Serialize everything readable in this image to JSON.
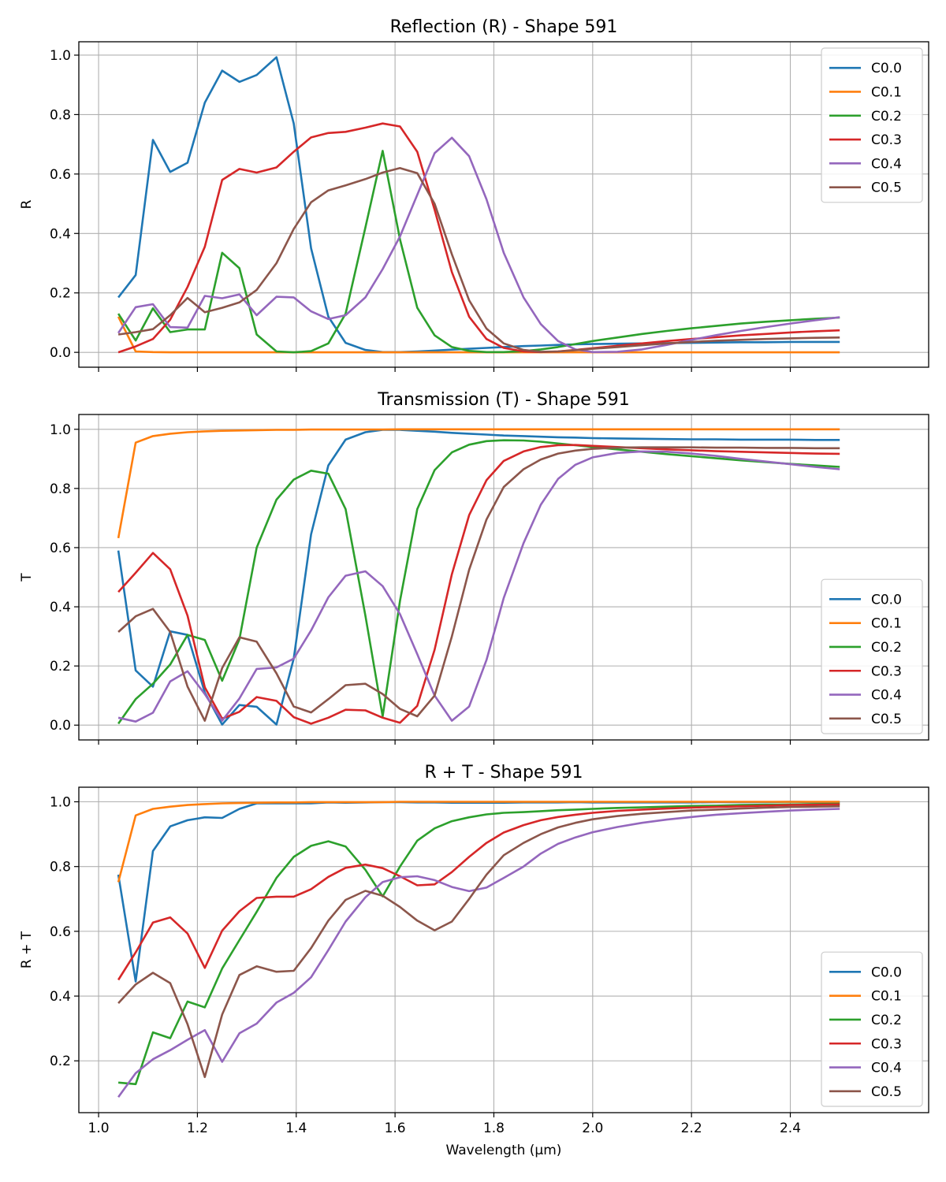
{
  "chart_data": [
    {
      "type": "line",
      "title": "Reflection (R) - Shape 591",
      "xlabel": "",
      "ylabel": "R",
      "xlim": [
        0.96,
        2.68
      ],
      "ylim": [
        -0.05,
        1.045
      ],
      "xticks": [
        1.0,
        1.2,
        1.4,
        1.6,
        1.8,
        2.0,
        2.2,
        2.4
      ],
      "xtick_labels": [],
      "yticks": [
        0.0,
        0.2,
        0.4,
        0.6,
        0.8,
        1.0
      ],
      "ytick_labels": [
        "0.0",
        "0.2",
        "0.4",
        "0.6",
        "0.8",
        "1.0"
      ],
      "grid": true,
      "legend": "top-right",
      "x": [
        1.04,
        1.075,
        1.11,
        1.145,
        1.18,
        1.215,
        1.25,
        1.285,
        1.32,
        1.36,
        1.395,
        1.43,
        1.465,
        1.5,
        1.54,
        1.575,
        1.61,
        1.645,
        1.68,
        1.715,
        1.75,
        1.785,
        1.82,
        1.86,
        1.895,
        1.93,
        1.965,
        2.0,
        2.05,
        2.1,
        2.15,
        2.2,
        2.25,
        2.3,
        2.35,
        2.4,
        2.45,
        2.5
      ],
      "series": [
        {
          "name": "C0.0",
          "color": "#1f77b4",
          "values": [
            0.185,
            0.26,
            0.715,
            0.607,
            0.638,
            0.84,
            0.948,
            0.91,
            0.933,
            0.993,
            0.77,
            0.35,
            0.12,
            0.032,
            0.008,
            0.001,
            0.001,
            0.003,
            0.006,
            0.009,
            0.012,
            0.015,
            0.018,
            0.021,
            0.023,
            0.025,
            0.027,
            0.028,
            0.029,
            0.03,
            0.031,
            0.032,
            0.033,
            0.034,
            0.034,
            0.035,
            0.035,
            0.035
          ]
        },
        {
          "name": "C0.1",
          "color": "#ff7f0e",
          "values": [
            0.12,
            0.003,
            0.001,
            0.0,
            0.0,
            0.0,
            0.0,
            0.0,
            0.0,
            0.0,
            0.0,
            0.0,
            0.0,
            0.0,
            0.0,
            0.0,
            0.0,
            0.0,
            0.0,
            0.0,
            0.0,
            0.0,
            0.0,
            0.0,
            0.0,
            0.0,
            0.0,
            0.0,
            0.0,
            0.0,
            0.0,
            0.0,
            0.0,
            0.0,
            0.0,
            0.0,
            0.0,
            0.0
          ]
        },
        {
          "name": "C0.2",
          "color": "#2ca02c",
          "values": [
            0.13,
            0.04,
            0.148,
            0.068,
            0.077,
            0.077,
            0.335,
            0.283,
            0.06,
            0.003,
            0.0,
            0.004,
            0.03,
            0.13,
            0.42,
            0.678,
            0.38,
            0.15,
            0.057,
            0.018,
            0.005,
            0.001,
            0.001,
            0.004,
            0.01,
            0.018,
            0.028,
            0.038,
            0.05,
            0.062,
            0.072,
            0.081,
            0.089,
            0.097,
            0.103,
            0.108,
            0.113,
            0.117
          ]
        },
        {
          "name": "C0.3",
          "color": "#d62728",
          "values": [
            0.0,
            0.02,
            0.045,
            0.11,
            0.22,
            0.355,
            0.58,
            0.617,
            0.605,
            0.622,
            0.675,
            0.723,
            0.738,
            0.742,
            0.756,
            0.77,
            0.76,
            0.675,
            0.48,
            0.27,
            0.12,
            0.045,
            0.015,
            0.003,
            0.001,
            0.003,
            0.008,
            0.014,
            0.022,
            0.03,
            0.038,
            0.045,
            0.051,
            0.057,
            0.062,
            0.067,
            0.071,
            0.074
          ]
        },
        {
          "name": "C0.4",
          "color": "#9467bd",
          "values": [
            0.065,
            0.152,
            0.162,
            0.085,
            0.083,
            0.19,
            0.182,
            0.195,
            0.125,
            0.187,
            0.185,
            0.138,
            0.112,
            0.125,
            0.185,
            0.28,
            0.39,
            0.53,
            0.67,
            0.722,
            0.66,
            0.515,
            0.335,
            0.185,
            0.095,
            0.038,
            0.01,
            0.001,
            0.002,
            0.01,
            0.025,
            0.042,
            0.058,
            0.072,
            0.085,
            0.097,
            0.108,
            0.118
          ]
        },
        {
          "name": "C0.5",
          "color": "#8c564b",
          "values": [
            0.06,
            0.068,
            0.078,
            0.125,
            0.183,
            0.135,
            0.15,
            0.168,
            0.21,
            0.3,
            0.415,
            0.505,
            0.545,
            0.562,
            0.583,
            0.605,
            0.62,
            0.603,
            0.5,
            0.33,
            0.175,
            0.08,
            0.03,
            0.008,
            0.002,
            0.003,
            0.007,
            0.012,
            0.018,
            0.024,
            0.03,
            0.035,
            0.039,
            0.042,
            0.045,
            0.047,
            0.049,
            0.05
          ]
        }
      ]
    },
    {
      "type": "line",
      "title": "Transmission (T) - Shape 591",
      "xlabel": "",
      "ylabel": "T",
      "xlim": [
        0.96,
        2.68
      ],
      "ylim": [
        -0.05,
        1.05
      ],
      "xticks": [
        1.0,
        1.2,
        1.4,
        1.6,
        1.8,
        2.0,
        2.2,
        2.4
      ],
      "xtick_labels": [],
      "yticks": [
        0.0,
        0.2,
        0.4,
        0.6,
        0.8,
        1.0
      ],
      "ytick_labels": [
        "0.0",
        "0.2",
        "0.4",
        "0.6",
        "0.8",
        "1.0"
      ],
      "grid": true,
      "legend": "bottom-right",
      "x": [
        1.04,
        1.075,
        1.11,
        1.145,
        1.18,
        1.215,
        1.25,
        1.285,
        1.32,
        1.36,
        1.395,
        1.43,
        1.465,
        1.5,
        1.54,
        1.575,
        1.61,
        1.645,
        1.68,
        1.715,
        1.75,
        1.785,
        1.82,
        1.86,
        1.895,
        1.93,
        1.965,
        2.0,
        2.05,
        2.1,
        2.15,
        2.2,
        2.25,
        2.3,
        2.35,
        2.4,
        2.45,
        2.5
      ],
      "series": [
        {
          "name": "C0.0",
          "color": "#1f77b4",
          "values": [
            0.59,
            0.185,
            0.13,
            0.317,
            0.305,
            0.11,
            0.002,
            0.068,
            0.062,
            0.002,
            0.225,
            0.645,
            0.878,
            0.965,
            0.99,
            0.998,
            0.998,
            0.995,
            0.992,
            0.988,
            0.985,
            0.982,
            0.979,
            0.977,
            0.975,
            0.973,
            0.972,
            0.97,
            0.969,
            0.968,
            0.967,
            0.966,
            0.966,
            0.965,
            0.965,
            0.965,
            0.964,
            0.964
          ]
        },
        {
          "name": "C0.1",
          "color": "#ff7f0e",
          "values": [
            0.632,
            0.955,
            0.977,
            0.985,
            0.99,
            0.993,
            0.995,
            0.996,
            0.997,
            0.998,
            0.998,
            0.999,
            0.999,
            0.999,
            0.999,
            0.999,
            1.0,
            1.0,
            1.0,
            1.0,
            1.0,
            1.0,
            1.0,
            1.0,
            1.0,
            1.0,
            1.0,
            1.0,
            1.0,
            1.0,
            1.0,
            1.0,
            1.0,
            1.0,
            1.0,
            1.0,
            1.0,
            1.0
          ]
        },
        {
          "name": "C0.2",
          "color": "#2ca02c",
          "values": [
            0.005,
            0.088,
            0.14,
            0.205,
            0.305,
            0.288,
            0.15,
            0.29,
            0.6,
            0.762,
            0.83,
            0.86,
            0.85,
            0.73,
            0.37,
            0.03,
            0.42,
            0.73,
            0.862,
            0.922,
            0.948,
            0.96,
            0.963,
            0.962,
            0.958,
            0.952,
            0.946,
            0.94,
            0.932,
            0.924,
            0.916,
            0.909,
            0.902,
            0.895,
            0.889,
            0.883,
            0.878,
            0.873
          ]
        },
        {
          "name": "C0.3",
          "color": "#d62728",
          "values": [
            0.45,
            0.515,
            0.582,
            0.527,
            0.37,
            0.128,
            0.022,
            0.045,
            0.095,
            0.082,
            0.027,
            0.005,
            0.025,
            0.052,
            0.05,
            0.025,
            0.008,
            0.065,
            0.255,
            0.51,
            0.71,
            0.828,
            0.893,
            0.925,
            0.94,
            0.946,
            0.947,
            0.944,
            0.94,
            0.936,
            0.932,
            0.929,
            0.926,
            0.924,
            0.922,
            0.92,
            0.918,
            0.917
          ]
        },
        {
          "name": "C0.4",
          "color": "#9467bd",
          "values": [
            0.025,
            0.012,
            0.042,
            0.148,
            0.182,
            0.105,
            0.015,
            0.09,
            0.19,
            0.195,
            0.225,
            0.32,
            0.432,
            0.505,
            0.52,
            0.47,
            0.375,
            0.24,
            0.1,
            0.015,
            0.063,
            0.22,
            0.43,
            0.615,
            0.745,
            0.832,
            0.88,
            0.905,
            0.92,
            0.925,
            0.924,
            0.918,
            0.91,
            0.9,
            0.891,
            0.882,
            0.873,
            0.865
          ]
        },
        {
          "name": "C0.5",
          "color": "#8c564b",
          "values": [
            0.315,
            0.368,
            0.393,
            0.315,
            0.13,
            0.015,
            0.193,
            0.297,
            0.282,
            0.175,
            0.063,
            0.043,
            0.088,
            0.135,
            0.14,
            0.105,
            0.055,
            0.03,
            0.1,
            0.3,
            0.525,
            0.695,
            0.805,
            0.865,
            0.898,
            0.918,
            0.928,
            0.934,
            0.938,
            0.939,
            0.939,
            0.939,
            0.938,
            0.938,
            0.937,
            0.937,
            0.936,
            0.936
          ]
        }
      ]
    },
    {
      "type": "line",
      "title": "R + T - Shape 591",
      "xlabel": "Wavelength (μm)",
      "ylabel": "R + T",
      "xlim": [
        0.96,
        2.68
      ],
      "ylim": [
        0.04,
        1.045
      ],
      "xticks": [
        1.0,
        1.2,
        1.4,
        1.6,
        1.8,
        2.0,
        2.2,
        2.4
      ],
      "xtick_labels": [
        "1.0",
        "1.2",
        "1.4",
        "1.6",
        "1.8",
        "2.0",
        "2.2",
        "2.4"
      ],
      "yticks": [
        0.2,
        0.4,
        0.6,
        0.8,
        1.0
      ],
      "ytick_labels": [
        "0.2",
        "0.4",
        "0.6",
        "0.8",
        "1.0"
      ],
      "grid": true,
      "legend": "bottom-right",
      "x": [
        1.04,
        1.075,
        1.11,
        1.145,
        1.18,
        1.215,
        1.25,
        1.285,
        1.32,
        1.36,
        1.395,
        1.43,
        1.465,
        1.5,
        1.54,
        1.575,
        1.61,
        1.645,
        1.68,
        1.715,
        1.75,
        1.785,
        1.82,
        1.86,
        1.895,
        1.93,
        1.965,
        2.0,
        2.05,
        2.1,
        2.15,
        2.2,
        2.25,
        2.3,
        2.35,
        2.4,
        2.45,
        2.5
      ],
      "series": [
        {
          "name": "C0.0",
          "color": "#1f77b4",
          "values": [
            0.775,
            0.445,
            0.848,
            0.924,
            0.943,
            0.952,
            0.95,
            0.978,
            0.995,
            0.995,
            0.995,
            0.995,
            0.998,
            0.997,
            0.998,
            0.999,
            0.999,
            0.998,
            0.998,
            0.997,
            0.997,
            0.997,
            0.997,
            0.998,
            0.998,
            0.998,
            0.999,
            0.998,
            0.998,
            0.998,
            0.998,
            0.998,
            0.999,
            0.999,
            0.999,
            1.0,
            0.999,
            0.999
          ]
        },
        {
          "name": "C0.1",
          "color": "#ff7f0e",
          "values": [
            0.752,
            0.958,
            0.978,
            0.985,
            0.99,
            0.993,
            0.995,
            0.996,
            0.997,
            0.998,
            0.998,
            0.999,
            0.999,
            0.999,
            0.999,
            0.999,
            1.0,
            1.0,
            1.0,
            1.0,
            1.0,
            1.0,
            1.0,
            1.0,
            1.0,
            1.0,
            1.0,
            1.0,
            1.0,
            1.0,
            1.0,
            1.0,
            1.0,
            1.0,
            1.0,
            1.0,
            1.0,
            1.0
          ]
        },
        {
          "name": "C0.2",
          "color": "#2ca02c",
          "values": [
            0.133,
            0.128,
            0.288,
            0.27,
            0.383,
            0.365,
            0.485,
            0.573,
            0.66,
            0.765,
            0.83,
            0.864,
            0.878,
            0.862,
            0.79,
            0.708,
            0.8,
            0.88,
            0.918,
            0.94,
            0.952,
            0.961,
            0.966,
            0.968,
            0.971,
            0.974,
            0.976,
            0.978,
            0.981,
            0.983,
            0.985,
            0.987,
            0.988,
            0.99,
            0.991,
            0.992,
            0.993,
            0.994
          ]
        },
        {
          "name": "C0.3",
          "color": "#d62728",
          "values": [
            0.45,
            0.535,
            0.627,
            0.643,
            0.593,
            0.487,
            0.602,
            0.662,
            0.703,
            0.707,
            0.707,
            0.73,
            0.768,
            0.796,
            0.806,
            0.795,
            0.77,
            0.742,
            0.745,
            0.783,
            0.83,
            0.873,
            0.905,
            0.928,
            0.943,
            0.953,
            0.96,
            0.966,
            0.972,
            0.976,
            0.979,
            0.982,
            0.984,
            0.986,
            0.988,
            0.99,
            0.991,
            0.992
          ]
        },
        {
          "name": "C0.4",
          "color": "#9467bd",
          "values": [
            0.088,
            0.162,
            0.205,
            0.233,
            0.265,
            0.295,
            0.197,
            0.285,
            0.315,
            0.38,
            0.41,
            0.458,
            0.542,
            0.63,
            0.705,
            0.752,
            0.767,
            0.77,
            0.758,
            0.737,
            0.724,
            0.735,
            0.765,
            0.8,
            0.84,
            0.87,
            0.89,
            0.906,
            0.922,
            0.935,
            0.945,
            0.953,
            0.96,
            0.965,
            0.969,
            0.973,
            0.976,
            0.978
          ]
        },
        {
          "name": "C0.5",
          "color": "#8c564b",
          "values": [
            0.378,
            0.436,
            0.472,
            0.44,
            0.313,
            0.15,
            0.343,
            0.465,
            0.492,
            0.475,
            0.478,
            0.548,
            0.633,
            0.697,
            0.725,
            0.71,
            0.675,
            0.633,
            0.603,
            0.63,
            0.7,
            0.775,
            0.835,
            0.873,
            0.9,
            0.921,
            0.935,
            0.946,
            0.956,
            0.963,
            0.968,
            0.973,
            0.976,
            0.979,
            0.982,
            0.984,
            0.985,
            0.986
          ]
        }
      ]
    }
  ]
}
